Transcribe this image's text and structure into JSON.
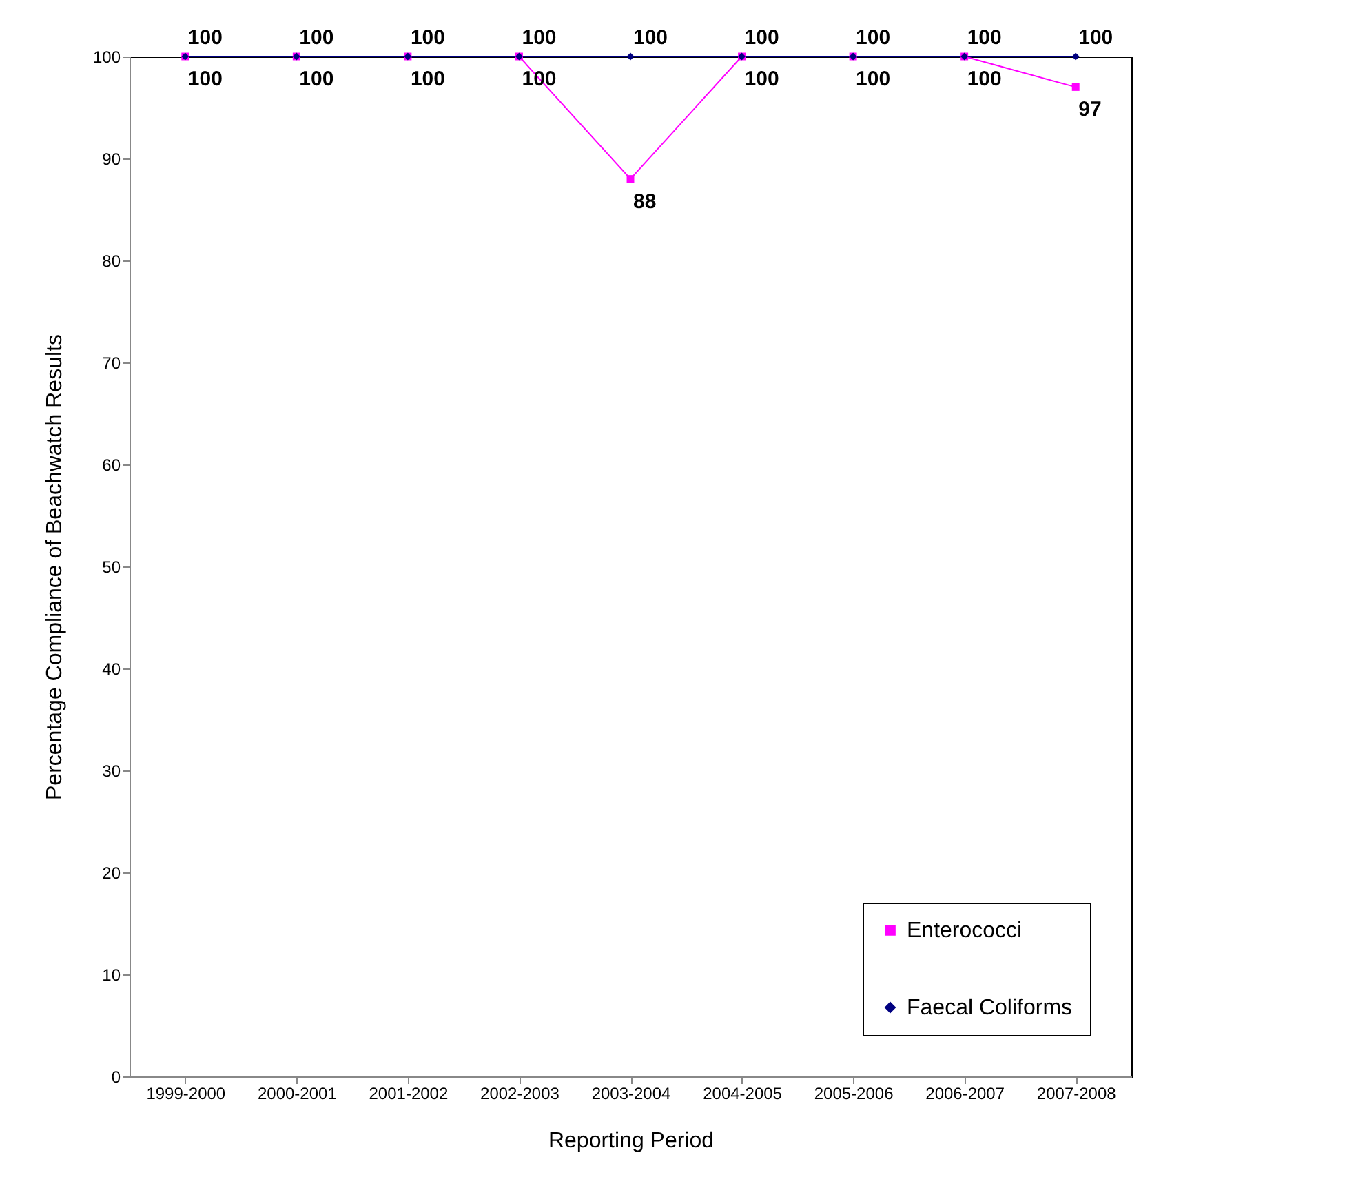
{
  "chart_data": {
    "type": "line",
    "xlabel": "Reporting Period",
    "ylabel": "Percentage Compliance of Beachwatch Results",
    "categories": [
      "1999-2000",
      "2000-2001",
      "2001-2002",
      "2002-2003",
      "2003-2004",
      "2004-2005",
      "2005-2006",
      "2006-2007",
      "2007-2008"
    ],
    "series": [
      {
        "name": "Enterococci",
        "color": "#ff00ff",
        "marker": "square",
        "values": [
          100,
          100,
          100,
          100,
          88,
          100,
          100,
          100,
          97
        ]
      },
      {
        "name": "Faecal Coliforms",
        "color": "#000080",
        "marker": "diamond",
        "values": [
          100,
          100,
          100,
          100,
          100,
          100,
          100,
          100,
          100
        ]
      }
    ],
    "ylim": [
      0,
      100
    ],
    "yticks": [
      0,
      10,
      20,
      30,
      40,
      50,
      60,
      70,
      80,
      90,
      100
    ],
    "grid": false,
    "legend": "bottom right",
    "data_labels": true,
    "line_style": "solid"
  }
}
